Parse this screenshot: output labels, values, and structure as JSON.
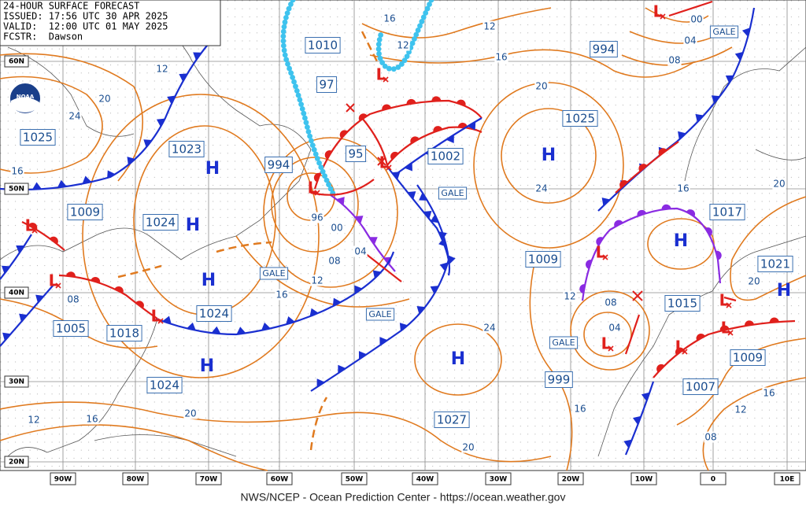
{
  "header": {
    "lines": [
      "24-HOUR SURFACE FORECAST",
      "ISSUED: 17:56 UTC 30 APR 2025",
      "VALID:  12:00 UTC 01 MAY 2025",
      "FCSTR:  Dawson"
    ]
  },
  "logo": "NOAA",
  "latitude_labels": [
    "60N",
    "50N",
    "40N",
    "30N",
    "20N"
  ],
  "longitude_labels": [
    "90W",
    "80W",
    "70W",
    "60W",
    "50W",
    "40W",
    "30W",
    "20W",
    "10W",
    "0",
    "10E"
  ],
  "high_centers": [
    "H",
    "H",
    "H",
    "H",
    "H",
    "H",
    "H",
    "H"
  ],
  "low_centers": [
    "L",
    "L",
    "L",
    "L",
    "L",
    "L",
    "L",
    "L",
    "L",
    "L",
    "L",
    "L"
  ],
  "central_pressures": [
    "1010",
    "97",
    "1025",
    "1023",
    "994",
    "95",
    "1002",
    "1025",
    "994",
    "1009",
    "1024",
    "1017",
    "1009",
    "1021",
    "1015",
    "1024",
    "1005",
    "1018",
    "999",
    "1007",
    "1009",
    "1024",
    "1027"
  ],
  "warnings": [
    "GALE",
    "GALE",
    "GALE",
    "GALE",
    "GALE"
  ],
  "isobar_labels": [
    "16",
    "12",
    "00",
    "04",
    "08",
    "12",
    "16",
    "12",
    "20",
    "24",
    "20",
    "16",
    "24",
    "16",
    "20",
    "96",
    "00",
    "04",
    "08",
    "12",
    "16",
    "08",
    "12",
    "08",
    "04",
    "20",
    "24",
    "20",
    "16",
    "12",
    "16",
    "12",
    "16",
    "20",
    "08"
  ],
  "footer": "NWS/NCEP - Ocean Prediction Center - https://ocean.weather.gov"
}
